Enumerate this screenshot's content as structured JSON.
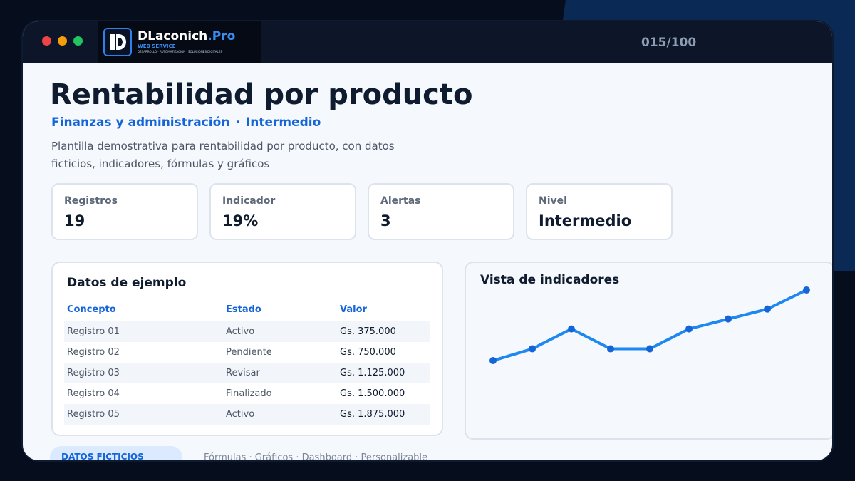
{
  "header": {
    "logo_name": "DLaconich",
    "logo_name_suffix": ".Pro",
    "logo_sub1": "WEB SERVICE",
    "logo_sub2": "DESARROLLO · AUTOMATIZACIÓN · SOLUCIONES DIGITALES",
    "counter": "015/100"
  },
  "page": {
    "title": "Rentabilidad por producto",
    "category": "Finanzas y administración",
    "separator": "·",
    "level": "Intermedio",
    "description": "Plantilla demostrativa para rentabilidad por producto, con datos ficticios, indicadores, fórmulas y gráficos"
  },
  "cards": [
    {
      "label": "Registros",
      "value": "19"
    },
    {
      "label": "Indicador",
      "value": "19%"
    },
    {
      "label": "Alertas",
      "value": "3"
    },
    {
      "label": "Nivel",
      "value": "Intermedio"
    }
  ],
  "table": {
    "title": "Datos de ejemplo",
    "columns": [
      "Concepto",
      "Estado",
      "Valor"
    ],
    "rows": [
      [
        "Registro 01",
        "Activo",
        "Gs. 375.000"
      ],
      [
        "Registro 02",
        "Pendiente",
        "Gs. 750.000"
      ],
      [
        "Registro 03",
        "Revisar",
        "Gs. 1.125.000"
      ],
      [
        "Registro 04",
        "Finalizado",
        "Gs. 1.500.000"
      ],
      [
        "Registro 05",
        "Activo",
        "Gs. 1.875.000"
      ]
    ]
  },
  "chart_title": "Vista de indicadores",
  "chart_data": {
    "type": "line",
    "title": "Vista de indicadores",
    "x": [
      1,
      2,
      3,
      4,
      5,
      6,
      7,
      8,
      9
    ],
    "values": [
      22,
      35,
      57,
      35,
      35,
      57,
      68,
      79,
      100
    ],
    "ylim": [
      0,
      100
    ],
    "grid": false,
    "legend": "none",
    "color": "#1e88f0",
    "marker_color": "#1565d8"
  },
  "footer": {
    "tag": "DATOS FICTICIOS",
    "text": "Fórmulas · Gráficos · Dashboard · Personalizable"
  },
  "colors": {
    "accent": "#1565d8",
    "background": "#060d1c",
    "titlebar": "#0d1628"
  }
}
